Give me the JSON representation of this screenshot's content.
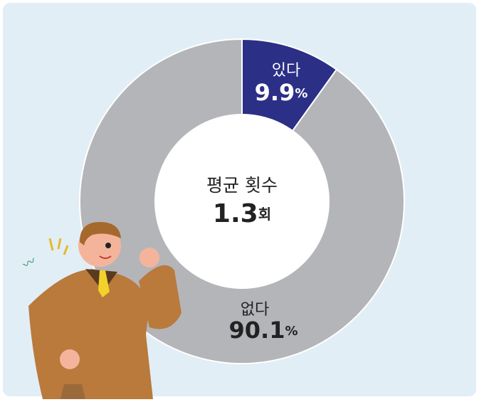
{
  "chart_data": {
    "type": "donut",
    "categories": [
      "있다",
      "없다"
    ],
    "values": [
      9.9,
      90.1
    ],
    "value_labels": [
      "9.9%",
      "90.1%"
    ],
    "colors": [
      "#2b2f86",
      "#b4b5b9"
    ],
    "center": {
      "label": "평균 횟수",
      "value": 1.3,
      "value_label": "1.3회"
    }
  }
}
